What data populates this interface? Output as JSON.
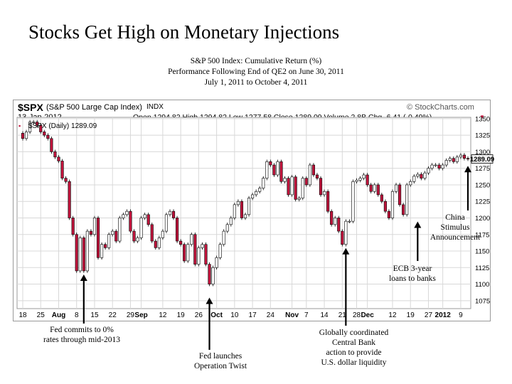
{
  "slide": {
    "title": "Stocks Get High on Monetary Injections",
    "subtitle_lines": [
      "S&P 500 Index: Cumulative Return (%)",
      "Performance Following End of QE2 on June 30, 2011",
      "July 1, 2011 to October 4, 2011"
    ]
  },
  "header": {
    "symbol": "$SPX",
    "name": "(S&P 500 Large Cap Index)",
    "exchange": "INDX",
    "watermark": "© StockCharts.com",
    "date": "13-Jan-2012",
    "stats": "Open 1294.82   High 1294.82   Low 1277.58   Close 1289.09   Volume 2.8B   Chg -6.41 (-0.49%)",
    "legend": "$SPX (Daily) 1289.09"
  },
  "chart_data": {
    "type": "candlestick",
    "title": "$SPX (S&P 500 Large Cap Index)",
    "y_ticks": [
      1075,
      1100,
      1125,
      1150,
      1175,
      1200,
      1225,
      1250,
      1275,
      1300,
      1325,
      1350
    ],
    "ylim": [
      1063,
      1352
    ],
    "last_value_label": "1289.09",
    "last_value": 1289.09,
    "x_labels": [
      {
        "label": "18",
        "bar": 0,
        "bold": false
      },
      {
        "label": "25",
        "bar": 5,
        "bold": false
      },
      {
        "label": "Aug",
        "bar": 10,
        "bold": true
      },
      {
        "label": "8",
        "bar": 15,
        "bold": false
      },
      {
        "label": "15",
        "bar": 20,
        "bold": false
      },
      {
        "label": "22",
        "bar": 25,
        "bold": false
      },
      {
        "label": "29",
        "bar": 30,
        "bold": false
      },
      {
        "label": "Sep",
        "bar": 33,
        "bold": true
      },
      {
        "label": "12",
        "bar": 39,
        "bold": false
      },
      {
        "label": "19",
        "bar": 44,
        "bold": false
      },
      {
        "label": "26",
        "bar": 49,
        "bold": false
      },
      {
        "label": "Oct",
        "bar": 54,
        "bold": true
      },
      {
        "label": "10",
        "bar": 59,
        "bold": false
      },
      {
        "label": "17",
        "bar": 64,
        "bold": false
      },
      {
        "label": "24",
        "bar": 69,
        "bold": false
      },
      {
        "label": "Nov",
        "bar": 75,
        "bold": true
      },
      {
        "label": "7",
        "bar": 79,
        "bold": false
      },
      {
        "label": "14",
        "bar": 84,
        "bold": false
      },
      {
        "label": "21",
        "bar": 89,
        "bold": false
      },
      {
        "label": "28",
        "bar": 93,
        "bold": false
      },
      {
        "label": "Dec",
        "bar": 96,
        "bold": true
      },
      {
        "label": "12",
        "bar": 103,
        "bold": false
      },
      {
        "label": "19",
        "bar": 108,
        "bold": false
      },
      {
        "label": "27",
        "bar": 113,
        "bold": false
      },
      {
        "label": "2012",
        "bar": 117,
        "bold": true
      },
      {
        "label": "9",
        "bar": 122,
        "bold": false
      }
    ],
    "closes": [
      1320,
      1330,
      1345,
      1345,
      1340,
      1330,
      1325,
      1320,
      1300,
      1292,
      1286,
      1260,
      1255,
      1200,
      1175,
      1120,
      1170,
      1120,
      1180,
      1175,
      1200,
      1140,
      1160,
      1155,
      1175,
      1180,
      1165,
      1200,
      1205,
      1210,
      1180,
      1165,
      1170,
      1200,
      1205,
      1190,
      1165,
      1155,
      1170,
      1180,
      1205,
      1210,
      1200,
      1165,
      1160,
      1135,
      1160,
      1175,
      1130,
      1155,
      1160,
      1130,
      1100,
      1125,
      1140,
      1160,
      1180,
      1190,
      1200,
      1220,
      1225,
      1200,
      1205,
      1230,
      1235,
      1240,
      1245,
      1260,
      1285,
      1280,
      1265,
      1285,
      1255,
      1260,
      1235,
      1262,
      1228,
      1230,
      1260,
      1250,
      1280,
      1265,
      1260,
      1235,
      1240,
      1210,
      1190,
      1200,
      1180,
      1160,
      1195,
      1195,
      1255,
      1257,
      1260,
      1265,
      1250,
      1240,
      1250,
      1235,
      1225,
      1210,
      1200,
      1240,
      1250,
      1220,
      1205,
      1250,
      1255,
      1263,
      1266,
      1260,
      1268,
      1275,
      1280,
      1280,
      1275,
      1280,
      1287,
      1290,
      1285,
      1292,
      1295,
      1290,
      1289.09
    ]
  },
  "annotations": [
    {
      "lines": [
        "Fed commits to 0%",
        "rates through mid-2013"
      ]
    },
    {
      "lines": [
        "Fed launches",
        "Operation Twist"
      ]
    },
    {
      "lines": [
        "Globally coordinated",
        "Central Bank",
        "action to provide",
        "U.S. dollar liquidity"
      ]
    },
    {
      "lines": [
        "ECB 3-year",
        "loans to banks"
      ]
    },
    {
      "lines": [
        "China",
        "Stimulus",
        "Announcement"
      ]
    }
  ],
  "colors": {
    "up": "#ffffff",
    "down": "#c0143c",
    "outline": "#000000",
    "grid": "#d8d8d8",
    "price_label_bg": "#f0f0f0"
  }
}
